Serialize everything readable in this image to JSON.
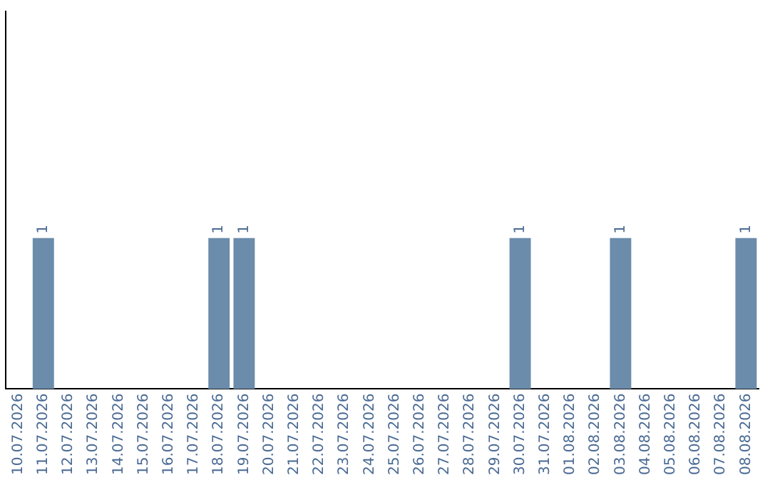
{
  "chart_data": {
    "type": "bar",
    "categories": [
      "10.07.2026",
      "11.07.2026",
      "12.07.2026",
      "13.07.2026",
      "14.07.2026",
      "15.07.2026",
      "16.07.2026",
      "17.07.2026",
      "18.07.2026",
      "19.07.2026",
      "20.07.2026",
      "21.07.2026",
      "22.07.2026",
      "23.07.2026",
      "24.07.2026",
      "25.07.2026",
      "26.07.2026",
      "27.07.2026",
      "28.07.2026",
      "29.07.2026",
      "30.07.2026",
      "31.07.2026",
      "01.08.2026",
      "02.08.2026",
      "03.08.2026",
      "04.08.2026",
      "05.08.2026",
      "06.08.2026",
      "07.08.2026",
      "08.08.2026"
    ],
    "values": [
      null,
      1,
      null,
      null,
      null,
      null,
      null,
      null,
      1,
      1,
      null,
      null,
      null,
      null,
      null,
      null,
      null,
      null,
      null,
      null,
      1,
      null,
      null,
      null,
      1,
      null,
      null,
      null,
      null,
      1
    ],
    "color": "#6b8cab",
    "data_labels": true,
    "grid": false,
    "legend": false,
    "tick_labels": "x"
  }
}
